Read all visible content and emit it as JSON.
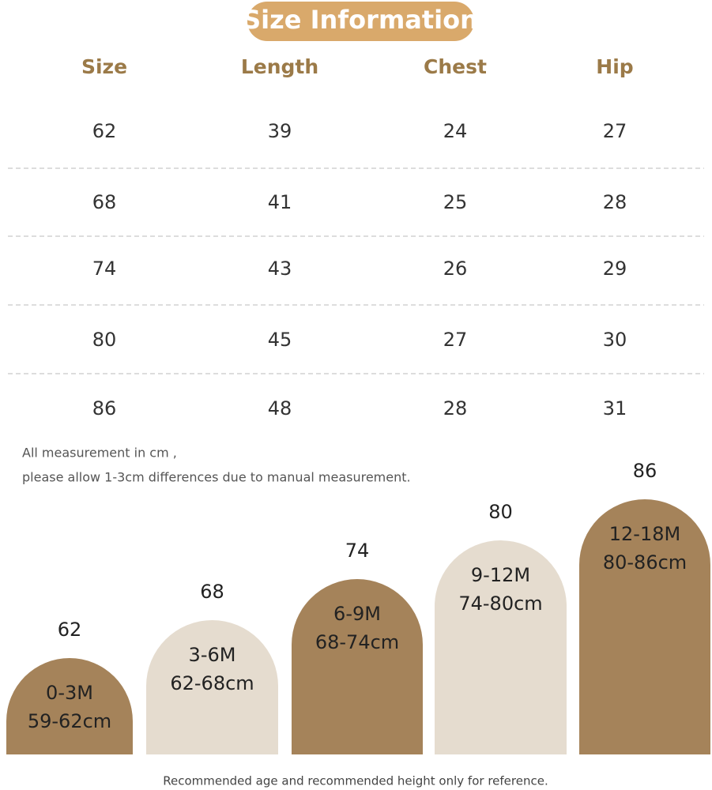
{
  "title": "Size Information",
  "table": {
    "headers": [
      "Size",
      "Length",
      "Chest",
      "Hip"
    ],
    "rows": [
      [
        "62",
        "39",
        "24",
        "27"
      ],
      [
        "68",
        "41",
        "25",
        "28"
      ],
      [
        "74",
        "43",
        "26",
        "29"
      ],
      [
        "80",
        "45",
        "27",
        "30"
      ],
      [
        "86",
        "48",
        "28",
        "31"
      ]
    ]
  },
  "notes": [
    "All measurement in cm ,",
    "please allow 1-3cm differences due to manual measurement."
  ],
  "arches": [
    {
      "size": "62",
      "age": "0-3M",
      "height": "59-62cm"
    },
    {
      "size": "68",
      "age": "3-6M",
      "height": "62-68cm"
    },
    {
      "size": "74",
      "age": "6-9M",
      "height": "68-74cm"
    },
    {
      "size": "80",
      "age": "9-12M",
      "height": "74-80cm"
    },
    {
      "size": "86",
      "age": "12-18M",
      "height": "80-86cm"
    }
  ],
  "footer": "Recommended age and recommended height only for reference."
}
